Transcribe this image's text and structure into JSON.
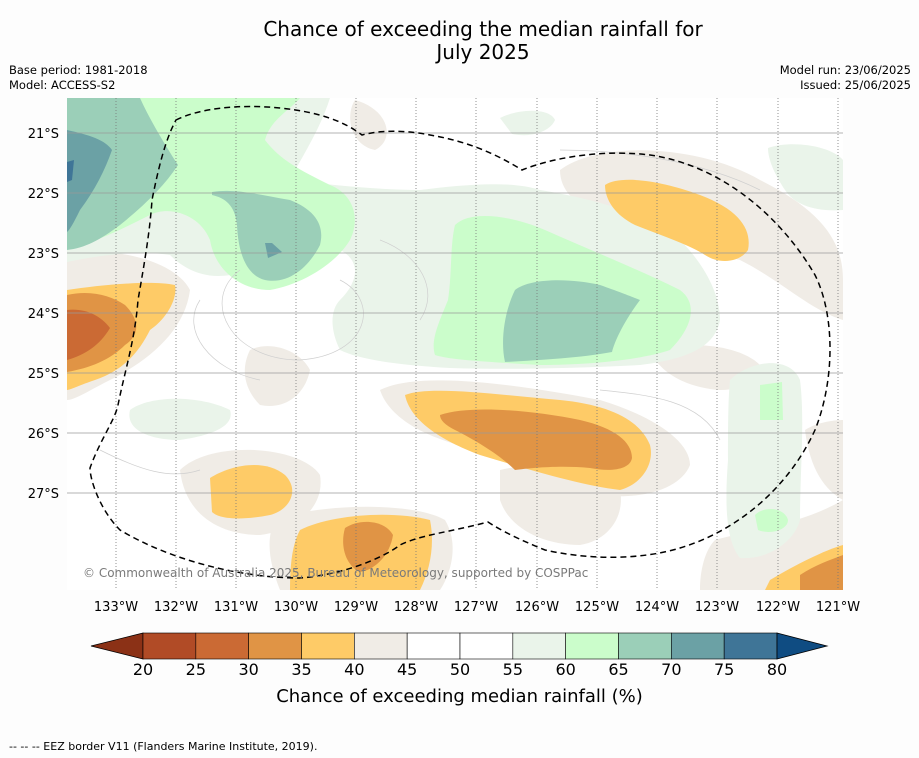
{
  "title_line1": "Chance of exceeding the median rainfall for",
  "title_line2": "July 2025",
  "base_period": "Base period: 1981-2018",
  "model": "Model: ACCESS-S2",
  "model_run": "Model run: 23/06/2025",
  "issued": "Issued: 25/06/2025",
  "copyright": "© Commonwealth of Australia 2025, Bureau of Meteorology, supported by COSPPac",
  "colorbar_label": "Chance of exceeding median rainfall (%)",
  "eez_note": "--  --  -- EEZ border V11 (Flanders Marine Institute, 2019).",
  "map": {
    "x_ticks": [
      "133°W",
      "132°W",
      "131°W",
      "130°W",
      "129°W",
      "128°W",
      "127°W",
      "126°W",
      "125°W",
      "124°W",
      "123°W",
      "122°W",
      "121°W"
    ],
    "y_ticks": [
      "21°S",
      "22°S",
      "23°S",
      "24°S",
      "25°S",
      "26°S",
      "27°S"
    ],
    "lon_range": [
      -133.8,
      -120.9
    ],
    "lat_range": [
      -28.6,
      -20.4
    ]
  },
  "colorbar": {
    "ticks": [
      "20",
      "25",
      "30",
      "35",
      "40",
      "45",
      "50",
      "55",
      "60",
      "65",
      "70",
      "75",
      "80"
    ],
    "colors": [
      "#b14b26",
      "#cb6a34",
      "#e09445",
      "#fecb67",
      "#f0ece6",
      "#ffffff",
      "#ffffff",
      "#eaf4ea",
      "#cbfdcb",
      "#9bcfb8",
      "#6ba1a5",
      "#3f7597"
    ],
    "under_color": "#8b3116",
    "over_color": "#0f4c82"
  }
}
